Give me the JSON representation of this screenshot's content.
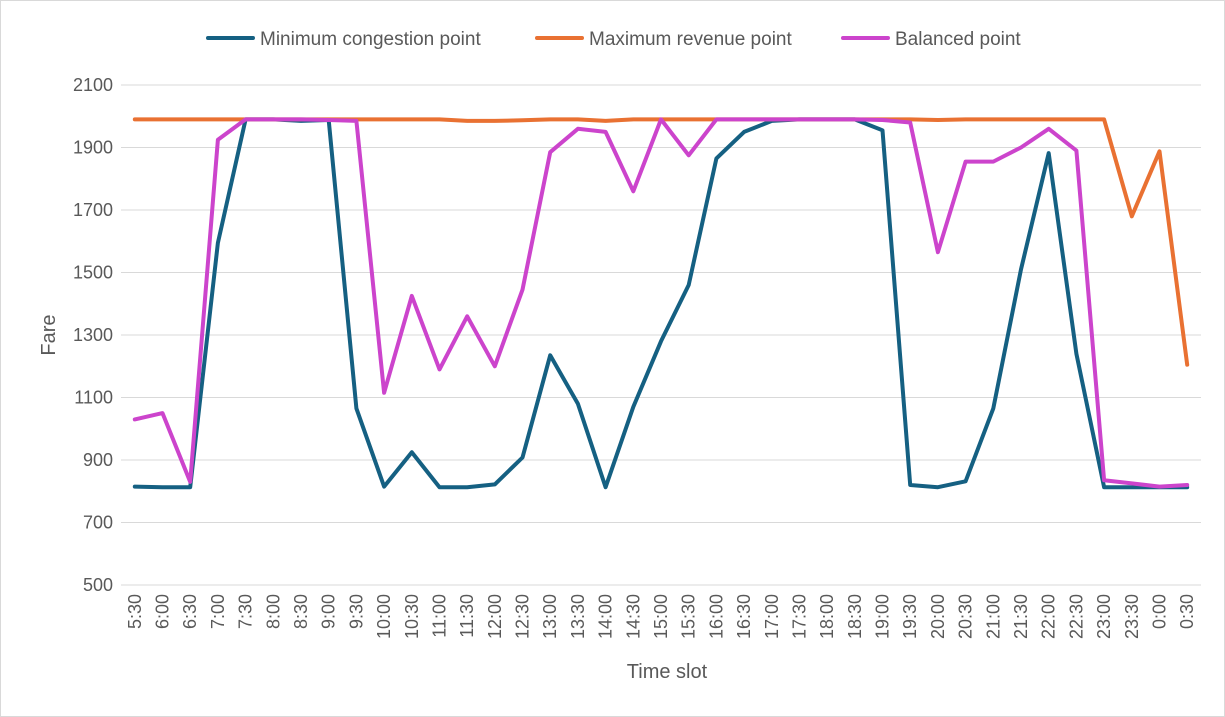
{
  "chart_data": {
    "type": "line",
    "title": "",
    "xlabel": "Time slot",
    "ylabel": "Fare",
    "ylim": [
      500,
      2100
    ],
    "yticks": [
      500,
      700,
      900,
      1100,
      1300,
      1500,
      1700,
      1900,
      2100
    ],
    "grid": "horizontal",
    "legend_position": "top",
    "categories": [
      "5:30",
      "6:00",
      "6:30",
      "7:00",
      "7:30",
      "8:00",
      "8:30",
      "9:00",
      "9:30",
      "10:00",
      "10:30",
      "11:00",
      "11:30",
      "12:00",
      "12:30",
      "13:00",
      "13:30",
      "14:00",
      "14:30",
      "15:00",
      "15:30",
      "16:00",
      "16:30",
      "17:00",
      "17:30",
      "18:00",
      "18:30",
      "19:00",
      "19:30",
      "20:00",
      "20:30",
      "21:00",
      "21:30",
      "22:00",
      "22:30",
      "23:00",
      "23:30",
      "0:00",
      "0:30"
    ],
    "series": [
      {
        "name": "Minimum congestion point",
        "color": "#156082",
        "values": [
          815,
          813,
          813,
          1595,
          1990,
          1990,
          1985,
          1988,
          1065,
          815,
          925,
          813,
          813,
          822,
          908,
          1235,
          1080,
          813,
          1070,
          1280,
          1460,
          1865,
          1950,
          1985,
          1990,
          1990,
          1990,
          1955,
          820,
          813,
          832,
          1065,
          1510,
          1882,
          1240,
          813,
          813,
          813,
          813
        ]
      },
      {
        "name": "Maximum revenue point",
        "color": "#E97132",
        "values": [
          1990,
          1990,
          1990,
          1990,
          1990,
          1990,
          1990,
          1990,
          1990,
          1990,
          1990,
          1990,
          1985,
          1985,
          1987,
          1990,
          1990,
          1985,
          1990,
          1990,
          1990,
          1990,
          1990,
          1990,
          1990,
          1990,
          1990,
          1990,
          1990,
          1988,
          1990,
          1990,
          1990,
          1990,
          1990,
          1990,
          1680,
          1888,
          1205
        ]
      },
      {
        "name": "Balanced point",
        "color": "#CC44CC",
        "values": [
          1030,
          1050,
          830,
          1925,
          1990,
          1990,
          1990,
          1988,
          1985,
          1115,
          1425,
          1190,
          1360,
          1200,
          1445,
          1885,
          1960,
          1950,
          1760,
          1990,
          1875,
          1990,
          1990,
          1990,
          1990,
          1990,
          1990,
          1988,
          1980,
          1565,
          1855,
          1855,
          1900,
          1960,
          1890,
          835,
          825,
          815,
          820
        ]
      }
    ]
  }
}
